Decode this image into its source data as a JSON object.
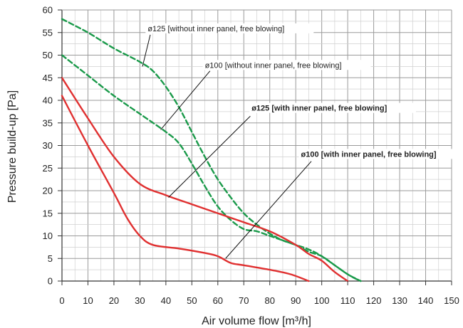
{
  "chart_data": {
    "type": "line",
    "xlabel": "Air volume flow [m³/h]",
    "ylabel": "Pressure build-up [Pa]",
    "xlim": [
      0,
      150
    ],
    "ylim": [
      0,
      60
    ],
    "x_ticks": [
      0,
      10,
      20,
      30,
      40,
      50,
      60,
      70,
      80,
      90,
      100,
      110,
      120,
      130,
      140,
      150
    ],
    "y_ticks": [
      0,
      5,
      10,
      15,
      20,
      25,
      30,
      35,
      40,
      45,
      50,
      55,
      60
    ],
    "grid": true,
    "colors": {
      "inner_panel": "#e03030",
      "no_inner_panel": "#1a9a4a",
      "grid": "#b4b4b4",
      "axis": "#333333"
    },
    "series": [
      {
        "name": "ø125 [without inner panel, free blowing]",
        "color": "#1a9a4a",
        "dashed": true,
        "points": [
          [
            0,
            58
          ],
          [
            10,
            55
          ],
          [
            20,
            51.5
          ],
          [
            30,
            48.5
          ],
          [
            35,
            46.5
          ],
          [
            40,
            43
          ],
          [
            45,
            38.5
          ],
          [
            50,
            33
          ],
          [
            55,
            27.5
          ],
          [
            60,
            22.5
          ],
          [
            65,
            18.5
          ],
          [
            70,
            15
          ],
          [
            75,
            12.5
          ],
          [
            80,
            10.5
          ],
          [
            85,
            9
          ],
          [
            90,
            8
          ],
          [
            95,
            6.5
          ],
          [
            100,
            5.5
          ],
          [
            105,
            3.5
          ],
          [
            110,
            1.5
          ],
          [
            115,
            0
          ]
        ]
      },
      {
        "name": "ø100 [without inner panel, free blowing]",
        "color": "#1a9a4a",
        "dashed": true,
        "points": [
          [
            0,
            50
          ],
          [
            10,
            45.5
          ],
          [
            20,
            41
          ],
          [
            30,
            37
          ],
          [
            40,
            33
          ],
          [
            45,
            30.5
          ],
          [
            50,
            26
          ],
          [
            55,
            21
          ],
          [
            60,
            16.5
          ],
          [
            65,
            13.5
          ],
          [
            70,
            11.5
          ],
          [
            75,
            11
          ],
          [
            80,
            10
          ],
          [
            85,
            9
          ],
          [
            90,
            8
          ],
          [
            95,
            7
          ],
          [
            100,
            5.5
          ],
          [
            110,
            1.5
          ],
          [
            115,
            0
          ]
        ]
      },
      {
        "name": "ø125 [with inner panel, free blowing]",
        "color": "#e03030",
        "dashed": false,
        "points": [
          [
            0,
            45
          ],
          [
            10,
            36
          ],
          [
            20,
            27.5
          ],
          [
            30,
            21.5
          ],
          [
            40,
            19
          ],
          [
            50,
            17
          ],
          [
            60,
            15
          ],
          [
            70,
            13
          ],
          [
            80,
            11
          ],
          [
            90,
            8
          ],
          [
            95,
            6
          ],
          [
            100,
            4.5
          ],
          [
            105,
            2
          ],
          [
            110,
            0
          ]
        ]
      },
      {
        "name": "ø100 [with inner panel, free blowing]",
        "color": "#e03030",
        "dashed": false,
        "points": [
          [
            0,
            41
          ],
          [
            10,
            30
          ],
          [
            20,
            19.5
          ],
          [
            25,
            14
          ],
          [
            30,
            10
          ],
          [
            35,
            8
          ],
          [
            45,
            7.2
          ],
          [
            55,
            6.2
          ],
          [
            60,
            5.5
          ],
          [
            65,
            4
          ],
          [
            70,
            3.5
          ],
          [
            80,
            2.5
          ],
          [
            88,
            1.5
          ],
          [
            95,
            0
          ]
        ]
      }
    ],
    "annotations": [
      {
        "text": "ø125 [without inner panel, free blowing]",
        "bold": false,
        "text_x": 33,
        "text_y": 55.3,
        "line_from": [
          34,
          54.5
        ],
        "line_to": [
          31,
          47.5
        ]
      },
      {
        "text": "ø100 [without inner panel, free blowing]",
        "bold": false,
        "text_x": 55,
        "text_y": 47.2,
        "line_from": [
          57,
          46.5
        ],
        "line_to": [
          38,
          33.5
        ]
      },
      {
        "text": "ø125 [with inner panel, free blowing]",
        "bold": true,
        "text_x": 73,
        "text_y": 37.7,
        "line_from": [
          72.5,
          36.5
        ],
        "line_to": [
          41,
          18.5
        ]
      },
      {
        "text": "ø100 [with inner panel, free blowing]",
        "bold": true,
        "text_x": 92,
        "text_y": 27.5,
        "line_from": [
          96,
          26.5
        ],
        "line_to": [
          63,
          5
        ]
      }
    ]
  }
}
